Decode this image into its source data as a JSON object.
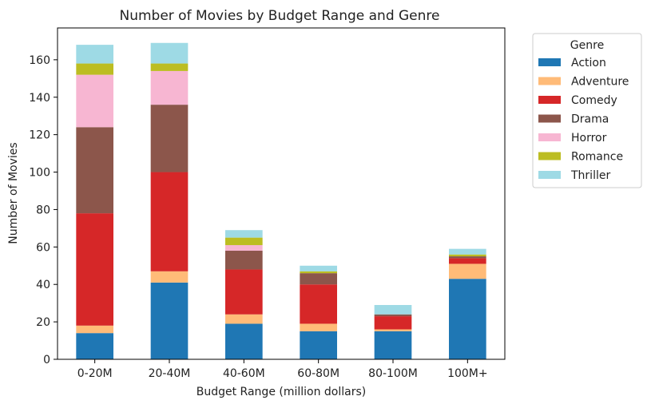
{
  "chart_data": {
    "type": "bar",
    "stacked": true,
    "title": "Number of Movies by Budget Range and Genre",
    "xlabel": "Budget Range (million dollars)",
    "ylabel": "Number of Movies",
    "ylim": [
      0,
      177
    ],
    "yticks": [
      0,
      20,
      40,
      60,
      80,
      100,
      120,
      140,
      160
    ],
    "grid": false,
    "legend": {
      "title": "Genre",
      "placement": "outside-right"
    },
    "categories": [
      "0-20M",
      "20-40M",
      "40-60M",
      "60-80M",
      "80-100M",
      "100M+"
    ],
    "series": [
      {
        "name": "Action",
        "color": "#1f77b4",
        "values": [
          14,
          41,
          19,
          15,
          15,
          43
        ]
      },
      {
        "name": "Adventure",
        "color": "#ffbb78",
        "values": [
          4,
          6,
          5,
          4,
          1,
          8
        ]
      },
      {
        "name": "Comedy",
        "color": "#d62728",
        "values": [
          60,
          53,
          24,
          21,
          7,
          3
        ]
      },
      {
        "name": "Drama",
        "color": "#8c564b",
        "values": [
          46,
          36,
          10,
          6,
          1,
          1
        ]
      },
      {
        "name": "Horror",
        "color": "#f7b6d2",
        "values": [
          28,
          18,
          3,
          0,
          0,
          0
        ]
      },
      {
        "name": "Romance",
        "color": "#bcbd22",
        "values": [
          6,
          4,
          4,
          1,
          0,
          1
        ]
      },
      {
        "name": "Thriller",
        "color": "#9edae5",
        "values": [
          10,
          11,
          4,
          3,
          5,
          3
        ]
      }
    ]
  }
}
